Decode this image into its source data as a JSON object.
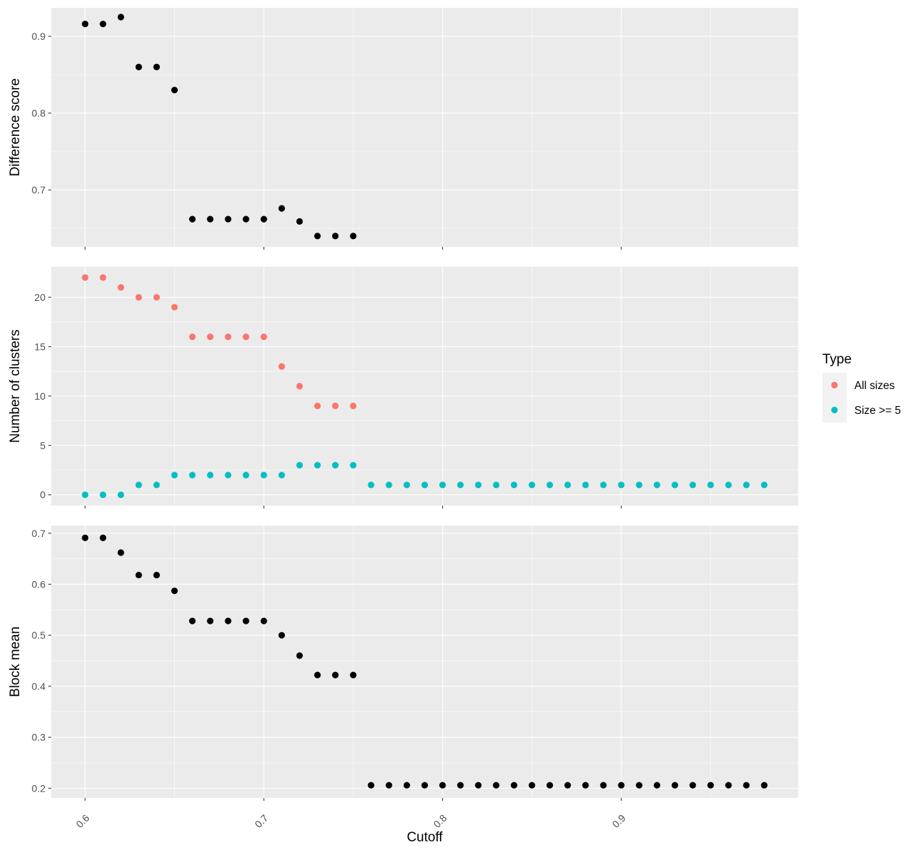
{
  "chart_data": [
    {
      "type": "scatter",
      "title": "",
      "ylabel": "Difference score",
      "xlim": [
        0.581,
        0.999
      ],
      "ylim": [
        0.626,
        0.937
      ],
      "ymajor": [
        0.7,
        0.8,
        0.9
      ],
      "yminor": [
        0.65,
        0.75,
        0.85
      ],
      "series": [
        {
          "color": "#000000",
          "x": [
            0.6,
            0.61,
            0.62,
            0.63,
            0.64,
            0.65,
            0.66,
            0.67,
            0.68,
            0.69,
            0.7,
            0.71,
            0.72,
            0.73,
            0.74,
            0.75
          ],
          "y": [
            0.916,
            0.916,
            0.925,
            0.86,
            0.86,
            0.83,
            0.662,
            0.662,
            0.662,
            0.662,
            0.662,
            0.676,
            0.659,
            0.64,
            0.64,
            0.64
          ]
        }
      ]
    },
    {
      "type": "scatter",
      "title": "",
      "ylabel": "Number of clusters",
      "xlim": [
        0.581,
        0.999
      ],
      "ylim": [
        -1.1,
        23.1
      ],
      "ymajor": [
        0,
        5,
        10,
        15,
        20
      ],
      "yminor": [
        2.5,
        7.5,
        12.5,
        17.5
      ],
      "series": [
        {
          "name": "All sizes",
          "color": "#F8766D",
          "x": [
            0.6,
            0.61,
            0.62,
            0.63,
            0.64,
            0.65,
            0.66,
            0.67,
            0.68,
            0.69,
            0.7,
            0.71,
            0.72,
            0.73,
            0.74,
            0.75
          ],
          "y": [
            22,
            22,
            21,
            20,
            20,
            19,
            16,
            16,
            16,
            16,
            16,
            13,
            11,
            9,
            9,
            9
          ]
        },
        {
          "name": "Size >= 5",
          "color": "#00BFC4",
          "x": [
            0.6,
            0.61,
            0.62,
            0.63,
            0.64,
            0.65,
            0.66,
            0.67,
            0.68,
            0.69,
            0.7,
            0.71,
            0.72,
            0.73,
            0.74,
            0.75,
            0.76,
            0.77,
            0.78,
            0.79,
            0.8,
            0.81,
            0.82,
            0.83,
            0.84,
            0.85,
            0.86,
            0.87,
            0.88,
            0.89,
            0.9,
            0.91,
            0.92,
            0.93,
            0.94,
            0.95,
            0.96,
            0.97,
            0.98
          ],
          "y": [
            0,
            0,
            0,
            1,
            1,
            2,
            2,
            2,
            2,
            2,
            2,
            2,
            3,
            3,
            3,
            3,
            1,
            1,
            1,
            1,
            1,
            1,
            1,
            1,
            1,
            1,
            1,
            1,
            1,
            1,
            1,
            1,
            1,
            1,
            1,
            1,
            1,
            1,
            1
          ]
        }
      ]
    },
    {
      "type": "scatter",
      "title": "",
      "ylabel": "Block mean",
      "xlabel": "Cutoff",
      "xlim": [
        0.581,
        0.999
      ],
      "ylim": [
        0.181,
        0.715
      ],
      "ymajor": [
        0.2,
        0.3,
        0.4,
        0.5,
        0.6,
        0.7
      ],
      "yminor": [
        0.25,
        0.35,
        0.45,
        0.55,
        0.65
      ],
      "series": [
        {
          "color": "#000000",
          "x": [
            0.6,
            0.61,
            0.62,
            0.63,
            0.64,
            0.65,
            0.66,
            0.67,
            0.68,
            0.69,
            0.7,
            0.71,
            0.72,
            0.73,
            0.74,
            0.75,
            0.76,
            0.77,
            0.78,
            0.79,
            0.8,
            0.81,
            0.82,
            0.83,
            0.84,
            0.85,
            0.86,
            0.87,
            0.88,
            0.89,
            0.9,
            0.91,
            0.92,
            0.93,
            0.94,
            0.95,
            0.96,
            0.97,
            0.98
          ],
          "y": [
            0.691,
            0.691,
            0.662,
            0.618,
            0.618,
            0.587,
            0.528,
            0.528,
            0.528,
            0.528,
            0.528,
            0.5,
            0.46,
            0.422,
            0.422,
            0.422,
            0.206,
            0.206,
            0.206,
            0.206,
            0.206,
            0.206,
            0.206,
            0.206,
            0.206,
            0.206,
            0.206,
            0.206,
            0.206,
            0.206,
            0.206,
            0.206,
            0.206,
            0.206,
            0.206,
            0.206,
            0.206,
            0.206,
            0.206
          ]
        }
      ]
    }
  ],
  "x_axis": {
    "label": "Cutoff",
    "major_ticks": [
      0.6,
      0.7,
      0.8,
      0.9
    ],
    "major_tick_labels": [
      "0.6",
      "0.7",
      "0.8",
      "0.9"
    ],
    "minor_ticks": [
      0.65,
      0.75,
      0.85,
      0.95
    ]
  },
  "legend": {
    "title": "Type",
    "position": "right",
    "items": [
      {
        "label": "All sizes",
        "color": "#F8766D"
      },
      {
        "label": "Size >= 5",
        "color": "#00BFC4"
      }
    ]
  },
  "style": {
    "panel_background": "#EBEBEB",
    "grid_color": "#FFFFFF",
    "text_color": "#4D4D4D",
    "title_color": "#000000"
  }
}
